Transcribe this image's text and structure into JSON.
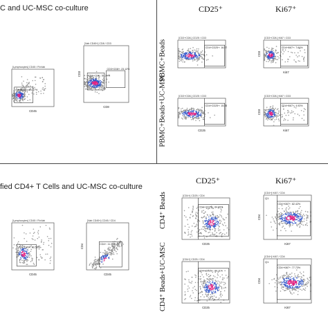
{
  "sections": [
    {
      "title": "C and UC-MSC co-culture"
    },
    {
      "title": "fied CD4+ T Cells and UC-MSC co-culture"
    }
  ],
  "col_heads": {
    "top_cd25": "CD25⁺",
    "top_ki67": "Ki67⁺",
    "bot_cd25": "CD25⁺",
    "bot_ki67": "Ki67⁺"
  },
  "row_labels": {
    "r1": "PBMC+Beads",
    "r2": "PBMC+Beads+UC-MSC",
    "r3": "CD4⁺ Beads",
    "r4": "CD4⁺ Beads+UC-MSC"
  },
  "plots": [
    {
      "id": "p1",
      "gate_header": "[Lymphocytes] CD45 / FlxVab",
      "gate_label": "Vab CD45+: 41.17%",
      "xlabel": "CD45",
      "ylabel": "",
      "quad": ""
    },
    {
      "id": "p2",
      "gate_header": "[Vab CD45+] CD8 / CD3",
      "gate_label": "CD3+CD8-: 51.34%",
      "gate_label2": "CD3+CD8+: 23.12%",
      "xlabel": "CD8",
      "ylabel": "CD3",
      "quad": ""
    },
    {
      "id": "p3",
      "gate_header": "[CD3+CD8-] CD25 / CD3",
      "gate_label": "CD4+CD25+: 16.97%",
      "xlabel": "",
      "ylabel": "",
      "quad": ""
    },
    {
      "id": "p4",
      "gate_header": "[CD3+CD8-] Ki67 / CD3",
      "gate_label": "CD4+Ki67+: 7.64%",
      "xlabel": "Ki67",
      "ylabel": "CD3",
      "quad": ""
    },
    {
      "id": "p5",
      "gate_header": "[CD3+CD8-] CD25 / CD3",
      "gate_label": "CD4+CD25+: 15.45%",
      "xlabel": "CD25",
      "ylabel": "",
      "quad": ""
    },
    {
      "id": "p6",
      "gate_header": "[CD3+CD8-] Ki67 / CD3",
      "gate_label": "CD4+Ki67+: 4.93%",
      "xlabel": "Ki67",
      "ylabel": "CD3",
      "quad": ""
    },
    {
      "id": "p7",
      "gate_header": "[Lymphocytes] CD45 / FlxVab",
      "gate_label": "Vab CD45+: 93.58%",
      "xlabel": "CD45",
      "ylabel": "",
      "quad": ""
    },
    {
      "id": "p8",
      "gate_header": "[Vab CD45+] CD45 / CD4",
      "gate_label": "CD4+: 11.34%",
      "xlabel": "CD45",
      "ylabel": "CD4",
      "quad": ""
    },
    {
      "id": "p9",
      "gate_header": "[CD4+] CD25 / CD4",
      "gate_label": "CD4+CD25+: 84.89%",
      "xlabel": "CD25",
      "ylabel": "",
      "quad": ""
    },
    {
      "id": "p10",
      "gate_header": "[CD4+] Ki67 / CD4",
      "gate_label": "CD4+Ki67+: 82.42%",
      "xlabel": "Ki67",
      "ylabel": "CD4",
      "quad": "Q1"
    },
    {
      "id": "p11",
      "gate_header": "[CD4+] CD25 / CD4",
      "gate_label": "CD4+CD25+: 89.11%",
      "xlabel": "CD25",
      "ylabel": "",
      "quad": ""
    },
    {
      "id": "p12",
      "gate_header": "[CD4+] Ki67 / CD4",
      "gate_label": "CD4+Ki67+: 77.73%",
      "xlabel": "Ki67",
      "ylabel": "CD4",
      "quad": "Q1"
    }
  ],
  "colors": {
    "high": "#e0207f",
    "mid": "#2f55c8",
    "low": "#8a8a8a",
    "gate": "#333333"
  }
}
